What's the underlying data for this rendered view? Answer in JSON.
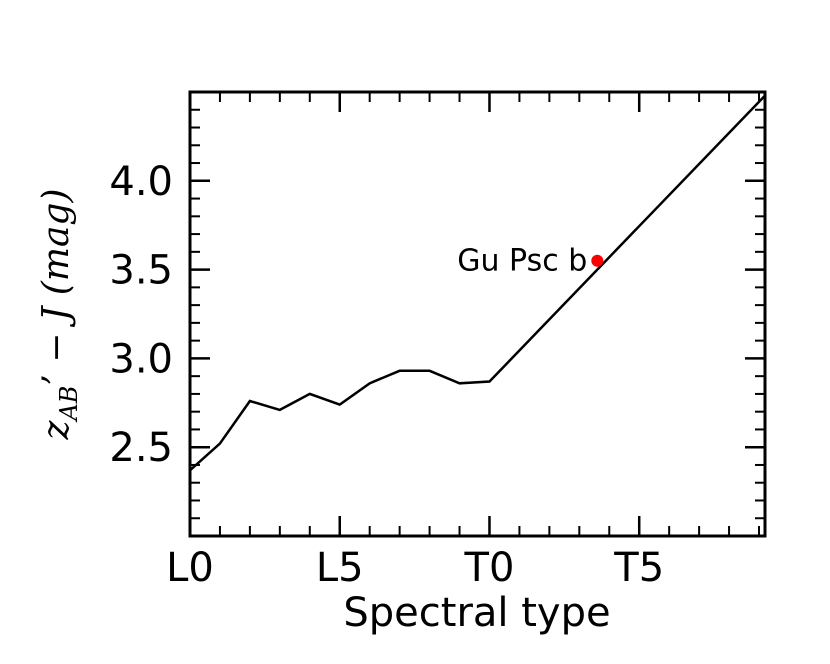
{
  "chart_data": {
    "type": "line",
    "xlabel": "Spectral type",
    "ylabel": {
      "main": "z",
      "sub": "AB",
      "rest": "’ − J (mag)"
    },
    "x_ticks": [
      {
        "value": 0,
        "label": "L0"
      },
      {
        "value": 5,
        "label": "L5"
      },
      {
        "value": 10,
        "label": "T0"
      },
      {
        "value": 15,
        "label": "T5"
      }
    ],
    "y_ticks": [
      {
        "value": 2.5,
        "label": "2.5"
      },
      {
        "value": 3.0,
        "label": "3.0"
      },
      {
        "value": 3.5,
        "label": "3.5"
      },
      {
        "value": 4.0,
        "label": "4.0"
      }
    ],
    "xlim": [
      0,
      19.2
    ],
    "ylim": [
      2.0,
      4.5
    ],
    "series": [
      {
        "color": "#000000",
        "x": [
          0,
          1,
          2,
          3,
          4,
          5,
          6,
          7,
          8,
          9,
          10,
          19.2
        ],
        "y": [
          2.37,
          2.52,
          2.76,
          2.71,
          2.8,
          2.74,
          2.86,
          2.93,
          2.93,
          2.86,
          2.87,
          4.48
        ]
      }
    ],
    "annotations": [
      {
        "label": "Gu Psc b",
        "x": 13.6,
        "y": 3.55,
        "color": "#ff0000"
      }
    ],
    "grid": false
  }
}
